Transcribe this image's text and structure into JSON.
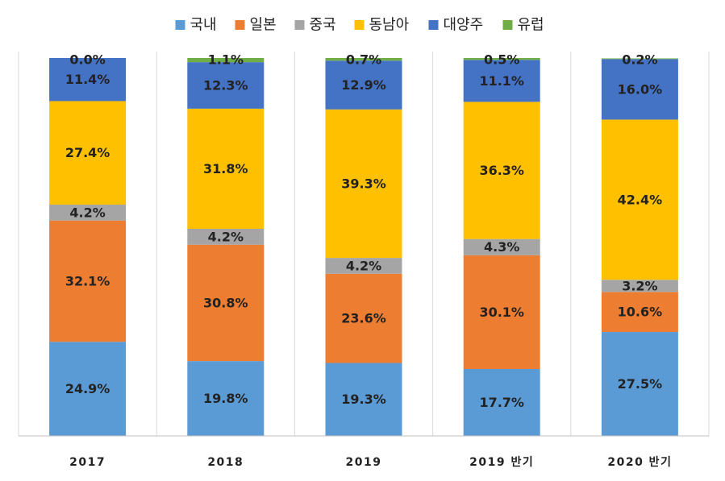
{
  "chart_data": {
    "type": "bar",
    "stacked": true,
    "title": "",
    "xlabel": "",
    "ylabel": "",
    "ylim": [
      0,
      100
    ],
    "grid": false,
    "legend_position": "top",
    "categories": [
      "2017",
      "2018",
      "2019",
      "2019 반기",
      "2020 반기"
    ],
    "series": [
      {
        "name": "국내",
        "color": "#5B9BD5",
        "values": [
          24.9,
          19.8,
          19.3,
          17.7,
          27.5
        ],
        "labels": [
          "24.9%",
          "19.8%",
          "19.3%",
          "17.7%",
          "27.5%"
        ]
      },
      {
        "name": "일본",
        "color": "#ED7D31",
        "values": [
          32.1,
          30.8,
          23.6,
          30.1,
          10.6
        ],
        "labels": [
          "32.1%",
          "30.8%",
          "23.6%",
          "30.1%",
          "10.6%"
        ]
      },
      {
        "name": "중국",
        "color": "#A5A5A5",
        "values": [
          4.2,
          4.2,
          4.2,
          4.3,
          3.2
        ],
        "labels": [
          "4.2%",
          "4.2%",
          "4.2%",
          "4.3%",
          "3.2%"
        ]
      },
      {
        "name": "동남아",
        "color": "#FFC000",
        "values": [
          27.4,
          31.8,
          39.3,
          36.3,
          42.4
        ],
        "labels": [
          "27.4%",
          "31.8%",
          "39.3%",
          "36.3%",
          "42.4%"
        ]
      },
      {
        "name": "대양주",
        "color": "#4472C4",
        "values": [
          11.4,
          12.3,
          12.9,
          11.1,
          16.0
        ],
        "labels": [
          "11.4%",
          "12.3%",
          "12.9%",
          "11.1%",
          "16.0%"
        ]
      },
      {
        "name": "유럽",
        "color": "#70AD47",
        "values": [
          0.0,
          1.1,
          0.7,
          0.5,
          0.2
        ],
        "labels": [
          "0.0%",
          "1.1%",
          "0.7%",
          "0.5%",
          "0.2%"
        ]
      }
    ]
  }
}
